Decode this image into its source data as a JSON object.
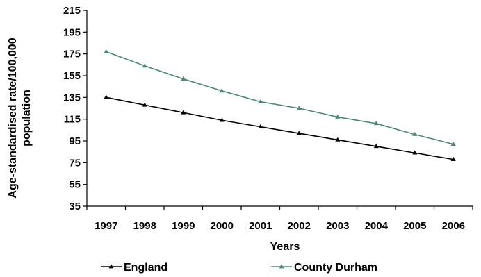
{
  "chart_data": {
    "type": "line",
    "title": "",
    "xlabel": "Years",
    "ylabel_lines": [
      "Age-standardised rate/100,000",
      "population"
    ],
    "x": [
      "1997",
      "1998",
      "1999",
      "2000",
      "2001",
      "2002",
      "2003",
      "2004",
      "2005",
      "2006"
    ],
    "ylim": [
      35,
      215
    ],
    "yticks": [
      35,
      55,
      75,
      95,
      115,
      135,
      155,
      175,
      195,
      215
    ],
    "grid": false,
    "legend_position": "bottom",
    "series": [
      {
        "name": "England",
        "color": "#000000",
        "marker": "triangle",
        "values": [
          135,
          128,
          121,
          114,
          108,
          102,
          96,
          90,
          84,
          78
        ]
      },
      {
        "name": "County Durham",
        "color": "#4a8a75",
        "marker": "triangle",
        "values": [
          177,
          164,
          152,
          141,
          131,
          125,
          117,
          111,
          101,
          92
        ]
      }
    ]
  }
}
